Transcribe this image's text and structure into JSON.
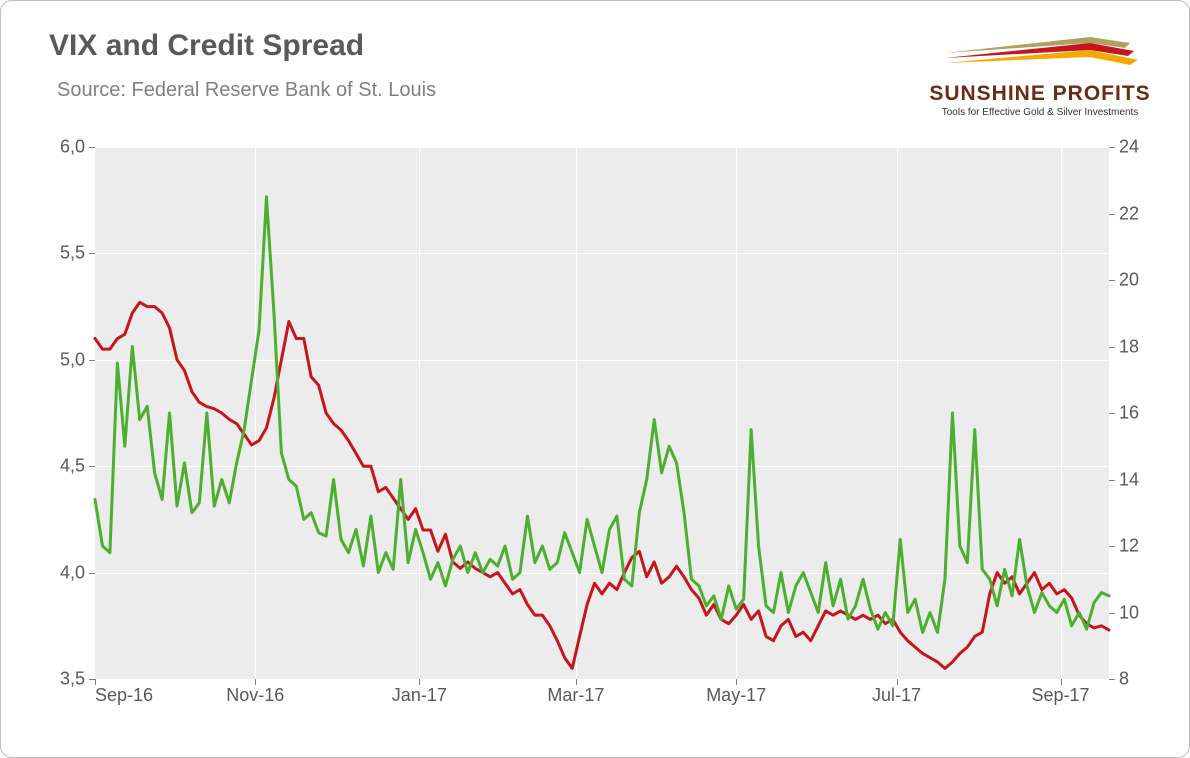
{
  "title": "VIX and Credit Spread",
  "subtitle": "Source: Federal Reserve Bank of St. Louis",
  "logo": {
    "name": "SUNSHINE PROFITS",
    "tagline": "Tools for Effective Gold & Silver Investments",
    "streak_colors": [
      "#b0a060",
      "#c5161d",
      "#f2a900"
    ]
  },
  "chart": {
    "type": "line-dual-axis",
    "background_color": "#ececec",
    "grid_color": "#ffffff",
    "card_border_color": "#bfbfbf",
    "title_color": "#595959",
    "title_fontsize": 30,
    "subtitle_color": "#808080",
    "subtitle_fontsize": 20,
    "axis_label_color": "#595959",
    "axis_label_fontsize": 18,
    "line_width": 3,
    "x": {
      "min": 0,
      "max": 272,
      "ticks": [
        {
          "pos": 0,
          "label": "Sep-16"
        },
        {
          "pos": 43,
          "label": "Nov-16"
        },
        {
          "pos": 87,
          "label": "Jan-17"
        },
        {
          "pos": 129,
          "label": "Mar-17"
        },
        {
          "pos": 172,
          "label": "May-17"
        },
        {
          "pos": 215,
          "label": "Jul-17"
        },
        {
          "pos": 259,
          "label": "Sep-17"
        }
      ]
    },
    "y_left": {
      "min": 3.5,
      "max": 6.0,
      "ticks": [
        3.5,
        4.0,
        4.5,
        5.0,
        5.5,
        6.0
      ],
      "tick_labels": [
        "3,5",
        "4,0",
        "4,5",
        "5,0",
        "5,5",
        "6,0"
      ]
    },
    "y_right": {
      "min": 8,
      "max": 24,
      "ticks": [
        8,
        10,
        12,
        14,
        16,
        18,
        20,
        22,
        24
      ]
    },
    "series": [
      {
        "name": "credit-spread",
        "axis": "left",
        "color": "#c5161d",
        "data": [
          [
            0,
            5.1
          ],
          [
            2,
            5.05
          ],
          [
            4,
            5.05
          ],
          [
            6,
            5.1
          ],
          [
            8,
            5.12
          ],
          [
            10,
            5.22
          ],
          [
            12,
            5.27
          ],
          [
            14,
            5.25
          ],
          [
            16,
            5.25
          ],
          [
            18,
            5.22
          ],
          [
            20,
            5.15
          ],
          [
            22,
            5.0
          ],
          [
            24,
            4.95
          ],
          [
            26,
            4.85
          ],
          [
            28,
            4.8
          ],
          [
            30,
            4.78
          ],
          [
            32,
            4.77
          ],
          [
            34,
            4.75
          ],
          [
            36,
            4.72
          ],
          [
            38,
            4.7
          ],
          [
            40,
            4.65
          ],
          [
            42,
            4.6
          ],
          [
            44,
            4.62
          ],
          [
            46,
            4.68
          ],
          [
            48,
            4.82
          ],
          [
            50,
            5.0
          ],
          [
            52,
            5.18
          ],
          [
            54,
            5.1
          ],
          [
            56,
            5.1
          ],
          [
            58,
            4.92
          ],
          [
            60,
            4.88
          ],
          [
            62,
            4.75
          ],
          [
            64,
            4.7
          ],
          [
            66,
            4.67
          ],
          [
            68,
            4.62
          ],
          [
            70,
            4.56
          ],
          [
            72,
            4.5
          ],
          [
            74,
            4.5
          ],
          [
            76,
            4.38
          ],
          [
            78,
            4.4
          ],
          [
            80,
            4.35
          ],
          [
            82,
            4.3
          ],
          [
            84,
            4.25
          ],
          [
            86,
            4.3
          ],
          [
            88,
            4.2
          ],
          [
            90,
            4.2
          ],
          [
            92,
            4.1
          ],
          [
            94,
            4.18
          ],
          [
            96,
            4.05
          ],
          [
            98,
            4.02
          ],
          [
            100,
            4.05
          ],
          [
            102,
            4.02
          ],
          [
            104,
            4.0
          ],
          [
            106,
            3.98
          ],
          [
            108,
            4.0
          ],
          [
            110,
            3.95
          ],
          [
            112,
            3.9
          ],
          [
            114,
            3.92
          ],
          [
            116,
            3.85
          ],
          [
            118,
            3.8
          ],
          [
            120,
            3.8
          ],
          [
            122,
            3.75
          ],
          [
            124,
            3.68
          ],
          [
            126,
            3.6
          ],
          [
            128,
            3.55
          ],
          [
            130,
            3.7
          ],
          [
            132,
            3.85
          ],
          [
            134,
            3.95
          ],
          [
            136,
            3.9
          ],
          [
            138,
            3.95
          ],
          [
            140,
            3.92
          ],
          [
            142,
            4.0
          ],
          [
            144,
            4.07
          ],
          [
            146,
            4.1
          ],
          [
            148,
            3.98
          ],
          [
            150,
            4.05
          ],
          [
            152,
            3.95
          ],
          [
            154,
            3.98
          ],
          [
            156,
            4.03
          ],
          [
            158,
            3.98
          ],
          [
            160,
            3.92
          ],
          [
            162,
            3.88
          ],
          [
            164,
            3.8
          ],
          [
            166,
            3.85
          ],
          [
            168,
            3.78
          ],
          [
            170,
            3.76
          ],
          [
            172,
            3.8
          ],
          [
            174,
            3.85
          ],
          [
            176,
            3.78
          ],
          [
            178,
            3.82
          ],
          [
            180,
            3.7
          ],
          [
            182,
            3.68
          ],
          [
            184,
            3.75
          ],
          [
            186,
            3.78
          ],
          [
            188,
            3.7
          ],
          [
            190,
            3.72
          ],
          [
            192,
            3.68
          ],
          [
            194,
            3.75
          ],
          [
            196,
            3.82
          ],
          [
            198,
            3.8
          ],
          [
            200,
            3.82
          ],
          [
            202,
            3.8
          ],
          [
            204,
            3.78
          ],
          [
            206,
            3.8
          ],
          [
            208,
            3.78
          ],
          [
            210,
            3.8
          ],
          [
            212,
            3.76
          ],
          [
            214,
            3.78
          ],
          [
            216,
            3.72
          ],
          [
            218,
            3.68
          ],
          [
            220,
            3.65
          ],
          [
            222,
            3.62
          ],
          [
            224,
            3.6
          ],
          [
            226,
            3.58
          ],
          [
            228,
            3.55
          ],
          [
            230,
            3.58
          ],
          [
            232,
            3.62
          ],
          [
            234,
            3.65
          ],
          [
            236,
            3.7
          ],
          [
            238,
            3.72
          ],
          [
            240,
            3.9
          ],
          [
            242,
            4.0
          ],
          [
            244,
            3.95
          ],
          [
            246,
            3.98
          ],
          [
            248,
            3.9
          ],
          [
            250,
            3.95
          ],
          [
            252,
            4.0
          ],
          [
            254,
            3.92
          ],
          [
            256,
            3.95
          ],
          [
            258,
            3.9
          ],
          [
            260,
            3.92
          ],
          [
            262,
            3.88
          ],
          [
            264,
            3.8
          ],
          [
            266,
            3.76
          ],
          [
            268,
            3.74
          ],
          [
            270,
            3.75
          ],
          [
            272,
            3.73
          ]
        ]
      },
      {
        "name": "vix",
        "axis": "right",
        "color": "#4caf2f",
        "data": [
          [
            0,
            13.4
          ],
          [
            2,
            12.0
          ],
          [
            4,
            11.8
          ],
          [
            6,
            17.5
          ],
          [
            8,
            15.0
          ],
          [
            10,
            18.0
          ],
          [
            12,
            15.8
          ],
          [
            14,
            16.2
          ],
          [
            16,
            14.2
          ],
          [
            18,
            13.4
          ],
          [
            20,
            16.0
          ],
          [
            22,
            13.2
          ],
          [
            24,
            14.5
          ],
          [
            26,
            13.0
          ],
          [
            28,
            13.3
          ],
          [
            30,
            16.0
          ],
          [
            32,
            13.2
          ],
          [
            34,
            14.0
          ],
          [
            36,
            13.3
          ],
          [
            38,
            14.5
          ],
          [
            40,
            15.5
          ],
          [
            42,
            17.0
          ],
          [
            44,
            18.5
          ],
          [
            46,
            22.5
          ],
          [
            48,
            19.0
          ],
          [
            50,
            14.8
          ],
          [
            52,
            14.0
          ],
          [
            54,
            13.8
          ],
          [
            56,
            12.8
          ],
          [
            58,
            13.0
          ],
          [
            60,
            12.4
          ],
          [
            62,
            12.3
          ],
          [
            64,
            14.0
          ],
          [
            66,
            12.2
          ],
          [
            68,
            11.8
          ],
          [
            70,
            12.5
          ],
          [
            72,
            11.4
          ],
          [
            74,
            12.9
          ],
          [
            76,
            11.2
          ],
          [
            78,
            11.8
          ],
          [
            80,
            11.3
          ],
          [
            82,
            14.0
          ],
          [
            84,
            11.5
          ],
          [
            86,
            12.5
          ],
          [
            88,
            11.8
          ],
          [
            90,
            11.0
          ],
          [
            92,
            11.5
          ],
          [
            94,
            10.8
          ],
          [
            96,
            11.6
          ],
          [
            98,
            12.0
          ],
          [
            100,
            11.2
          ],
          [
            102,
            11.8
          ],
          [
            104,
            11.2
          ],
          [
            106,
            11.6
          ],
          [
            108,
            11.4
          ],
          [
            110,
            12.0
          ],
          [
            112,
            11.0
          ],
          [
            114,
            11.2
          ],
          [
            116,
            12.9
          ],
          [
            118,
            11.5
          ],
          [
            120,
            12.0
          ],
          [
            122,
            11.3
          ],
          [
            124,
            11.5
          ],
          [
            126,
            12.4
          ],
          [
            128,
            11.8
          ],
          [
            130,
            11.2
          ],
          [
            132,
            12.8
          ],
          [
            134,
            12.0
          ],
          [
            136,
            11.2
          ],
          [
            138,
            12.5
          ],
          [
            140,
            12.9
          ],
          [
            142,
            11.0
          ],
          [
            144,
            10.8
          ],
          [
            146,
            13.0
          ],
          [
            148,
            14.0
          ],
          [
            150,
            15.8
          ],
          [
            152,
            14.2
          ],
          [
            154,
            15.0
          ],
          [
            156,
            14.5
          ],
          [
            158,
            13.0
          ],
          [
            160,
            11.0
          ],
          [
            162,
            10.8
          ],
          [
            164,
            10.2
          ],
          [
            166,
            10.5
          ],
          [
            168,
            9.8
          ],
          [
            170,
            10.8
          ],
          [
            172,
            10.1
          ],
          [
            174,
            10.4
          ],
          [
            176,
            15.5
          ],
          [
            178,
            12.0
          ],
          [
            180,
            10.2
          ],
          [
            182,
            10.0
          ],
          [
            184,
            11.2
          ],
          [
            186,
            10.0
          ],
          [
            188,
            10.8
          ],
          [
            190,
            11.2
          ],
          [
            192,
            10.6
          ],
          [
            194,
            10.0
          ],
          [
            196,
            11.5
          ],
          [
            198,
            10.2
          ],
          [
            200,
            11.0
          ],
          [
            202,
            9.8
          ],
          [
            204,
            10.2
          ],
          [
            206,
            11.0
          ],
          [
            208,
            10.1
          ],
          [
            210,
            9.5
          ],
          [
            212,
            10.0
          ],
          [
            214,
            9.6
          ],
          [
            216,
            12.2
          ],
          [
            218,
            10.0
          ],
          [
            220,
            10.4
          ],
          [
            222,
            9.4
          ],
          [
            224,
            10.0
          ],
          [
            226,
            9.4
          ],
          [
            228,
            11.0
          ],
          [
            230,
            16.0
          ],
          [
            232,
            12.0
          ],
          [
            234,
            11.5
          ],
          [
            236,
            15.5
          ],
          [
            238,
            11.3
          ],
          [
            240,
            11.0
          ],
          [
            242,
            10.2
          ],
          [
            244,
            11.3
          ],
          [
            246,
            10.5
          ],
          [
            248,
            12.2
          ],
          [
            250,
            10.8
          ],
          [
            252,
            10.0
          ],
          [
            254,
            10.6
          ],
          [
            256,
            10.2
          ],
          [
            258,
            10.0
          ],
          [
            260,
            10.4
          ],
          [
            262,
            9.6
          ],
          [
            264,
            10.0
          ],
          [
            266,
            9.5
          ],
          [
            268,
            10.3
          ],
          [
            270,
            10.6
          ],
          [
            272,
            10.5
          ]
        ]
      }
    ]
  }
}
